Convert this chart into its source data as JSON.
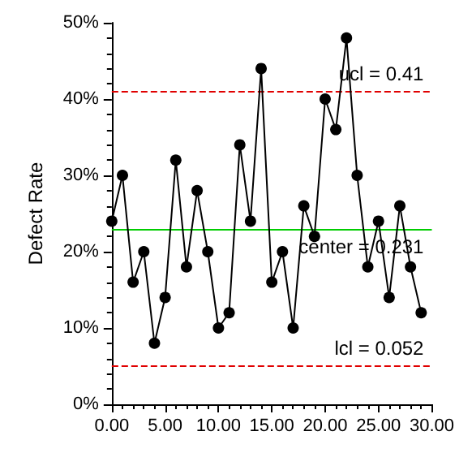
{
  "chart_data": {
    "type": "line",
    "ylabel": "Defect Rate",
    "x": [
      0,
      1,
      2,
      3,
      4,
      5,
      6,
      7,
      8,
      9,
      10,
      11,
      12,
      13,
      14,
      15,
      16,
      17,
      18,
      19,
      20,
      21,
      22,
      23,
      24,
      25,
      26,
      27,
      28,
      29
    ],
    "series": [
      {
        "color": "#000000",
        "values": [
          0.24,
          0.3,
          0.16,
          0.2,
          0.08,
          0.14,
          0.32,
          0.18,
          0.28,
          0.2,
          0.1,
          0.12,
          0.34,
          0.24,
          0.44,
          0.16,
          0.2,
          0.1,
          0.26,
          0.22,
          0.4,
          0.36,
          0.48,
          0.3,
          0.18,
          0.24,
          0.14,
          0.26,
          0.18,
          0.12
        ]
      }
    ],
    "marker": "circle",
    "grid": false,
    "xlim": [
      0,
      30
    ],
    "xticks": [
      {
        "value": 0,
        "label": "0.00"
      },
      {
        "value": 5,
        "label": "5.00"
      },
      {
        "value": 10,
        "label": "10.00"
      },
      {
        "value": 15,
        "label": "15.00"
      },
      {
        "value": 20,
        "label": "20.00"
      },
      {
        "value": 25,
        "label": "25.00"
      },
      {
        "value": 30,
        "label": "30.00"
      }
    ],
    "ylim": [
      0,
      0.5
    ],
    "yticks": [
      {
        "value": 0,
        "label": "0%"
      },
      {
        "value": 0.1,
        "label": "10%"
      },
      {
        "value": 0.2,
        "label": "20%"
      },
      {
        "value": 0.3,
        "label": "30%"
      },
      {
        "value": 0.4,
        "label": "40%"
      },
      {
        "value": 0.5,
        "label": "50%"
      }
    ],
    "ref_lines": [
      {
        "axis": "y",
        "value": 0.41,
        "label": "ucl = 0.41",
        "color": "#e00000",
        "line_style": "dashed"
      },
      {
        "axis": "y",
        "value": 0.231,
        "label": "center = 0.231",
        "color": "#00cc00",
        "line_style": "solid"
      },
      {
        "axis": "y",
        "value": 0.052,
        "label": "lcl = 0.052",
        "color": "#e00000",
        "line_style": "dashed"
      }
    ]
  }
}
